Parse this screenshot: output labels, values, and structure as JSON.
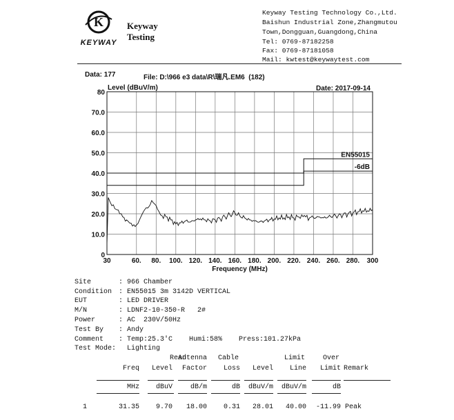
{
  "header": {
    "brand_line1": "Keyway",
    "brand_line2": "Testing",
    "logo_letter": "K",
    "logo_wordmark": "KEYWAY",
    "company": "Keyway Testing Technology Co.,Ltd.",
    "address1": "Baishun Industrial Zone,Zhangmutou",
    "address2": "Town,Dongguan,Guangdong,China",
    "tel": "Tel: 0769-87182258",
    "fax": "Fax: 0769-87181058",
    "mail": "Mail: kwtest@keywaytest.com"
  },
  "meta": {
    "data": "Data: 177",
    "file": "File: D:\\966 e3 data\\R\\瑞凡.EM6  (182)",
    "date": "Date: 2017-09-14"
  },
  "chart_data": {
    "type": "line",
    "ylabel": "Level (dBuV/m)",
    "xlabel": "Frequency (MHz)",
    "xlim": [
      30,
      300
    ],
    "ylim": [
      0,
      80
    ],
    "x_ticks": [
      "30",
      "60.",
      "80.",
      "100.",
      "120.",
      "140.",
      "160.",
      "180.",
      "200.",
      "220.",
      "240.",
      "260.",
      "280.",
      "300"
    ],
    "x_tick_values": [
      30,
      60,
      80,
      100,
      120,
      140,
      160,
      180,
      200,
      220,
      240,
      260,
      280,
      300
    ],
    "y_ticks": [
      "0",
      "10.0",
      "20.0",
      "30.0",
      "40.0",
      "50.0",
      "60.0",
      "70.0",
      "80"
    ],
    "y_tick_values": [
      0,
      10,
      20,
      30,
      40,
      50,
      60,
      70,
      80
    ],
    "grid": true,
    "limit_lines": [
      {
        "name": "EN55015",
        "points": [
          [
            30,
            40
          ],
          [
            230,
            40
          ],
          [
            230,
            47
          ],
          [
            300,
            47
          ]
        ]
      },
      {
        "name": "-6dB",
        "points": [
          [
            30,
            34
          ],
          [
            230,
            34
          ],
          [
            230,
            41
          ],
          [
            300,
            41
          ]
        ]
      }
    ],
    "series": [
      {
        "x": [
          30,
          31.35,
          33,
          35,
          38,
          40,
          43,
          46,
          50,
          53,
          56,
          60,
          63,
          66,
          70,
          74,
          77,
          80,
          83,
          86,
          90,
          95,
          100,
          105,
          110,
          115,
          120,
          125,
          130,
          135,
          140,
          145,
          150,
          155,
          160,
          165,
          170,
          175,
          180,
          185,
          190,
          195,
          200,
          205,
          210,
          215,
          220,
          225,
          228,
          232,
          236,
          240,
          245,
          250,
          255,
          260,
          265,
          270,
          275,
          280,
          285,
          290,
          295,
          300
        ],
        "y": [
          5,
          28.0,
          26,
          24,
          22.5,
          22,
          20,
          18.5,
          17,
          15.5,
          14,
          14.5,
          17,
          20,
          23,
          24.5,
          25.5,
          24,
          21,
          19,
          18.5,
          17,
          15,
          15.5,
          16.5,
          16,
          17,
          17.5,
          17,
          16.5,
          17,
          17.5,
          18.5,
          19.5,
          20.5,
          19,
          18,
          17,
          16.5,
          16,
          16.5,
          17,
          17.5,
          18,
          18,
          18.5,
          18,
          18.5,
          19.5,
          18.5,
          18,
          18,
          18.5,
          18,
          18.5,
          19,
          19,
          19.5,
          20,
          20.5,
          21,
          21.5,
          21.5,
          22
        ]
      }
    ]
  },
  "info": {
    "site": {
      "label": "Site",
      "value": "966 Chamber"
    },
    "condition": {
      "label": "Condition",
      "value": "EN55015 3m 3142D VERTICAL"
    },
    "eut": {
      "label": "EUT",
      "value": "LED DRIVER"
    },
    "mn": {
      "label": "M/N",
      "value": "LDNF2-10-350-R   2#"
    },
    "power": {
      "label": "Power",
      "value": "AC  230V/50Hz"
    },
    "testby": {
      "label": "Test By",
      "value": "Andy"
    },
    "comment": {
      "label": "Comment",
      "value": "Temp:25.3'C    Humi:58%    Press:101.27kPa"
    },
    "mode": {
      "label": "Test Mode",
      "value": "Lighting"
    }
  },
  "table": {
    "head_top": [
      "Read",
      "Antenna",
      "Cable",
      "Limit",
      "Over"
    ],
    "head_main": [
      "Freq",
      "Level",
      "Factor",
      "Loss",
      "Level",
      "Line",
      "Limit",
      "Remark"
    ],
    "units": [
      "MHz",
      "dBuV",
      "dB/m",
      "dB",
      "dBuV/m",
      "dBuV/m",
      "dB"
    ],
    "rows": [
      {
        "no": "1",
        "freq": "31.35",
        "read": "9.70",
        "factor": "18.00",
        "loss": "0.31",
        "level": "28.01",
        "line": "40.00",
        "over": "-11.99",
        "remark": "Peak"
      }
    ]
  }
}
